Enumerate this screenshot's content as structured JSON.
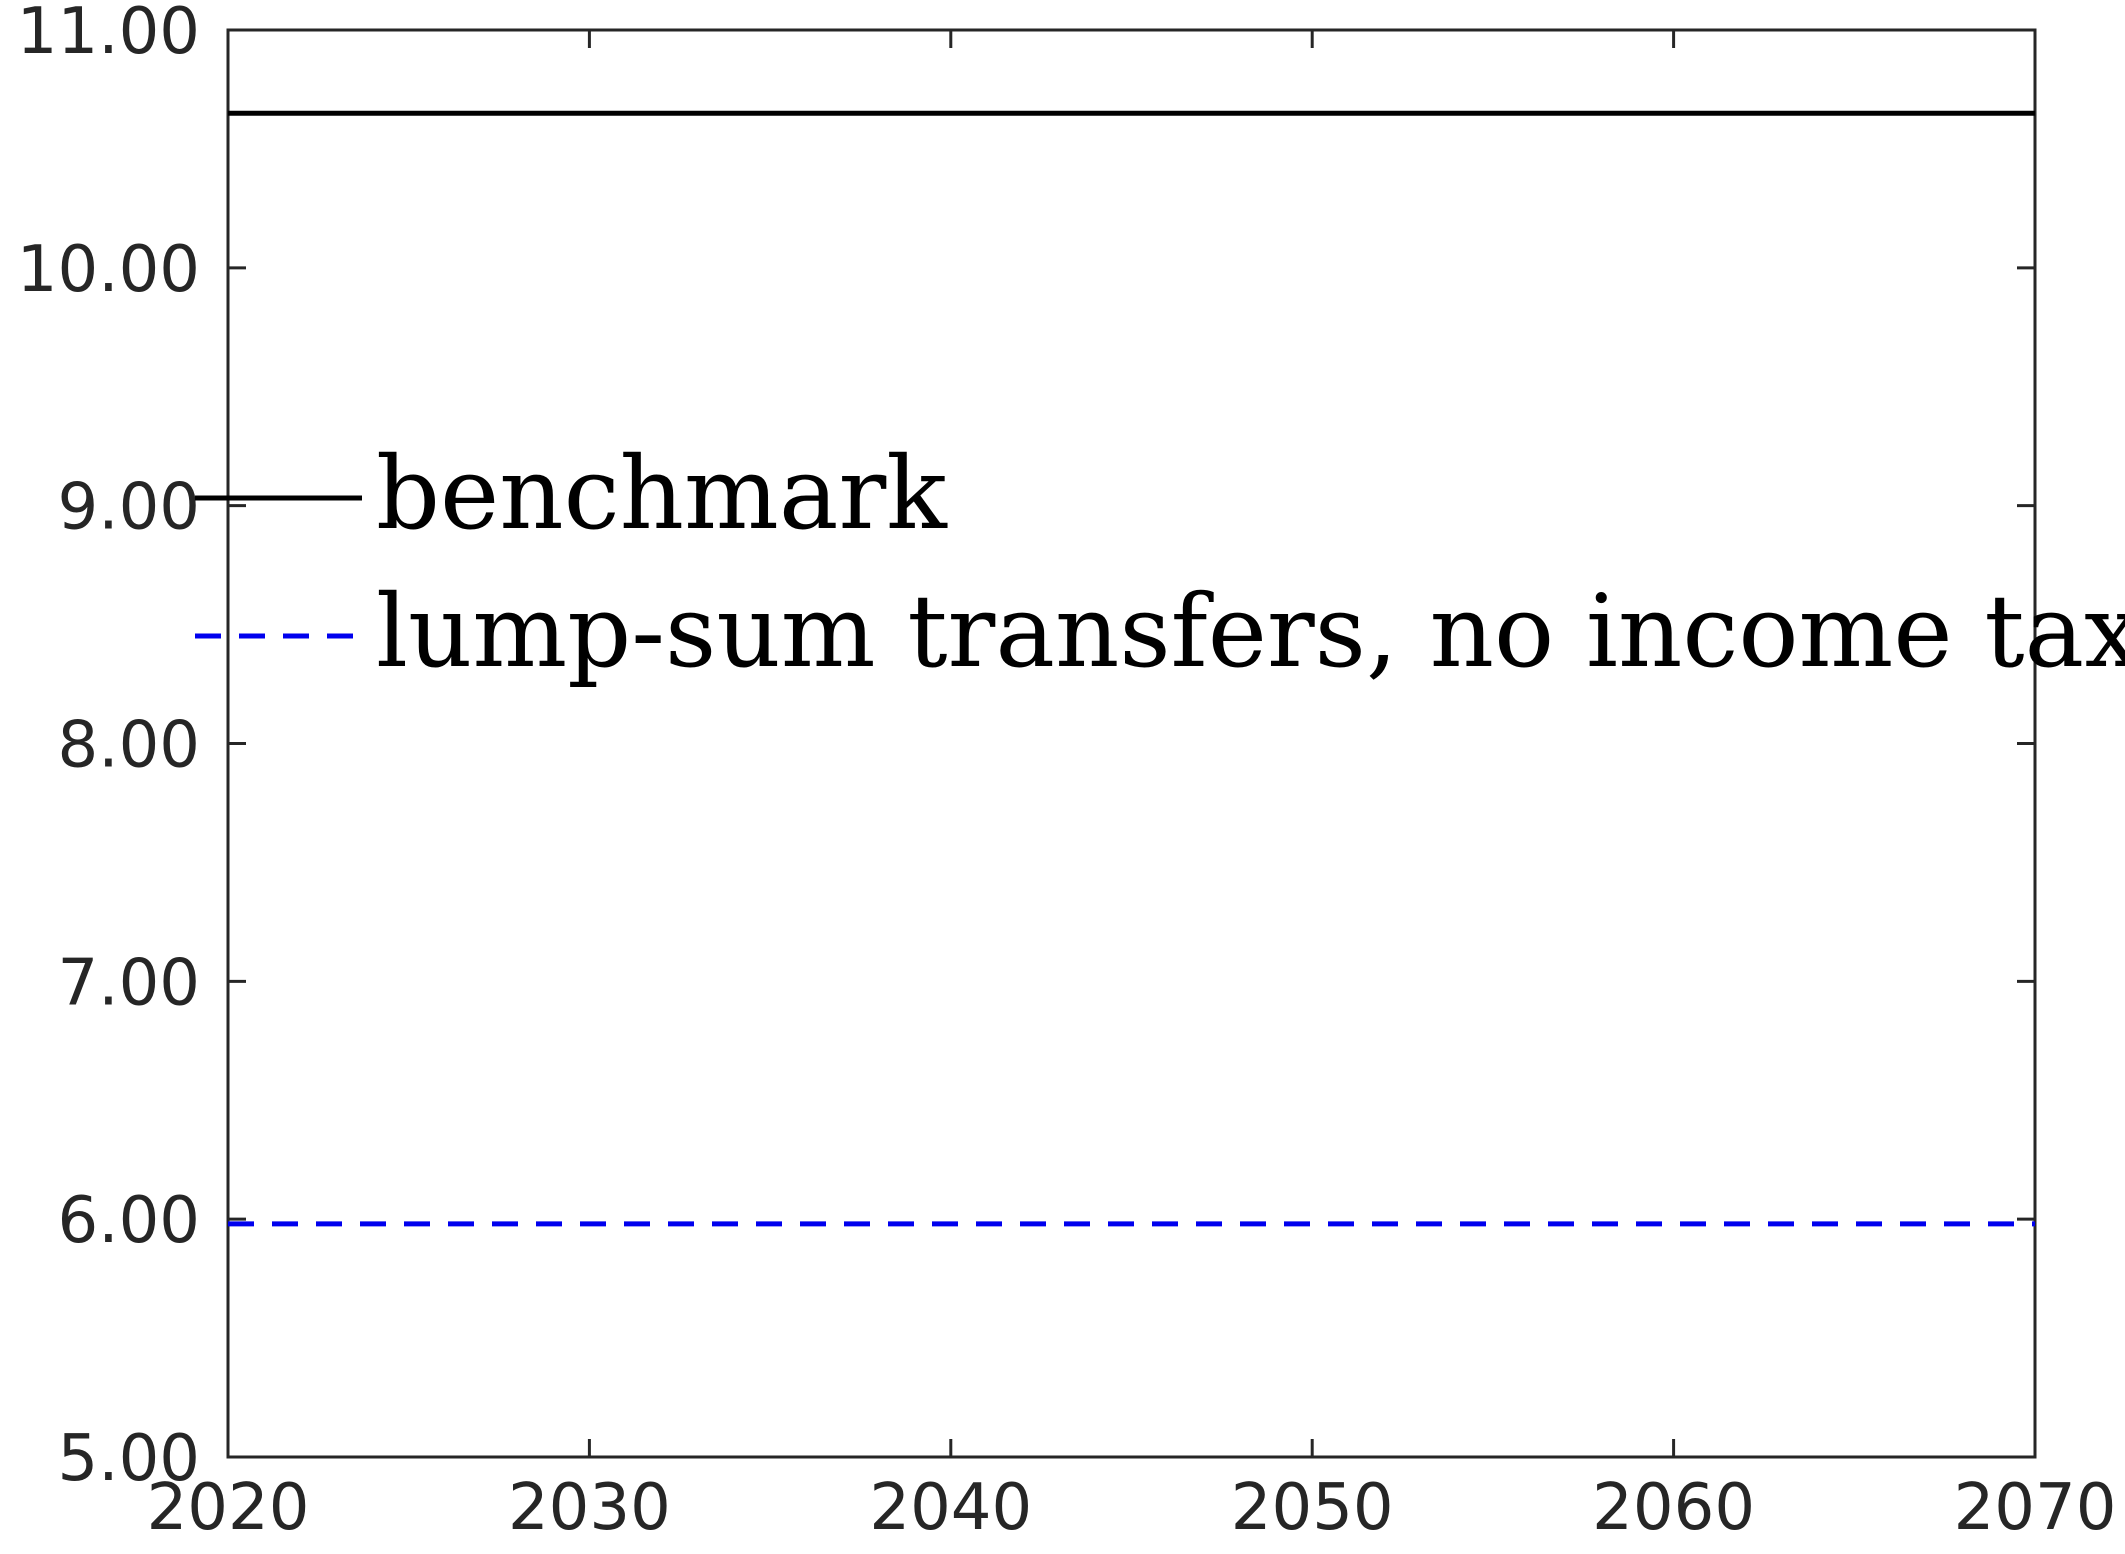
{
  "chart_data": {
    "type": "line",
    "title": "",
    "xlabel": "",
    "ylabel": "",
    "xlim": [
      2020,
      2070
    ],
    "ylim": [
      5,
      11
    ],
    "x_ticks": [
      2020,
      2030,
      2040,
      2050,
      2060,
      2070
    ],
    "x_tick_labels": [
      "2020",
      "2030",
      "2040",
      "2050",
      "2060",
      "2070"
    ],
    "y_ticks": [
      5,
      6,
      7,
      8,
      9,
      10,
      11
    ],
    "y_tick_labels": [
      "5.00",
      "6.00",
      "7.00",
      "8.00",
      "9.00",
      "10.00",
      "11.00"
    ],
    "grid": false,
    "legend_position": "center-left",
    "series": [
      {
        "name": "benchmark",
        "color": "#000000",
        "style": "solid",
        "x": [
          2020,
          2070
        ],
        "y": [
          10.65,
          10.65
        ]
      },
      {
        "name": "lump-sum transfers, no income tax",
        "color": "#0000ee",
        "style": "dashed",
        "x": [
          2020,
          2070
        ],
        "y": [
          5.98,
          5.98
        ]
      }
    ]
  }
}
